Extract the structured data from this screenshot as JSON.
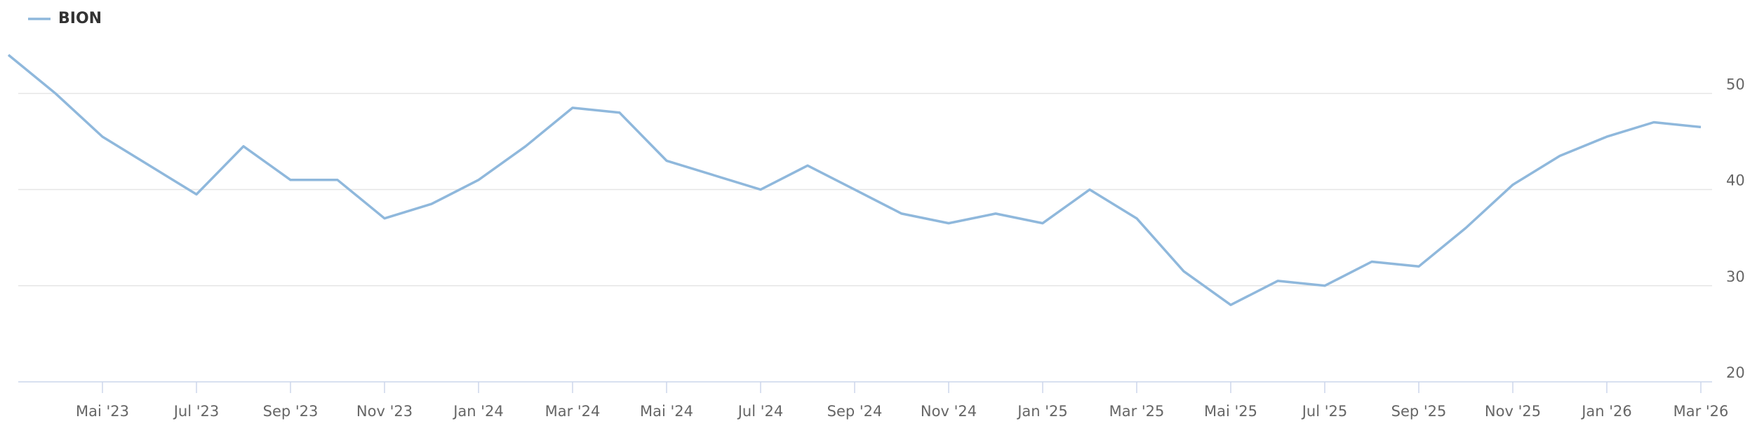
{
  "chart_data": {
    "type": "line",
    "x": [
      "2023-03",
      "2023-04",
      "2023-05",
      "2023-06",
      "2023-07",
      "2023-08",
      "2023-09",
      "2023-10",
      "2023-11",
      "2023-12",
      "2024-01",
      "2024-02",
      "2024-03",
      "2024-04",
      "2024-05",
      "2024-06",
      "2024-07",
      "2024-08",
      "2024-09",
      "2024-10",
      "2024-11",
      "2024-12",
      "2025-01",
      "2025-02",
      "2025-03",
      "2025-04",
      "2025-05",
      "2025-06",
      "2025-07",
      "2025-08",
      "2025-09",
      "2025-10",
      "2025-11",
      "2025-12",
      "2026-01",
      "2026-02",
      "2026-03"
    ],
    "series": [
      {
        "name": "BION",
        "color": "#8fb8dc",
        "values": [
          54,
          50,
          45.5,
          42.5,
          39.5,
          44.5,
          41,
          41,
          37,
          38.5,
          41,
          44.5,
          48.5,
          48,
          43,
          41.5,
          40,
          42.5,
          40,
          37.5,
          36.5,
          37.5,
          36.5,
          40,
          37,
          31.5,
          28,
          30.5,
          30,
          32.5,
          32,
          36,
          40.5,
          43.5,
          45.5,
          47,
          46.5
        ]
      }
    ],
    "xticks": [
      {
        "value": "2023-05",
        "label": "Mai '23"
      },
      {
        "value": "2023-07",
        "label": "Jul '23"
      },
      {
        "value": "2023-09",
        "label": "Sep '23"
      },
      {
        "value": "2023-11",
        "label": "Nov '23"
      },
      {
        "value": "2024-01",
        "label": "Jan '24"
      },
      {
        "value": "2024-03",
        "label": "Mar '24"
      },
      {
        "value": "2024-05",
        "label": "Mai '24"
      },
      {
        "value": "2024-07",
        "label": "Jul '24"
      },
      {
        "value": "2024-09",
        "label": "Sep '24"
      },
      {
        "value": "2024-11",
        "label": "Nov '24"
      },
      {
        "value": "2025-01",
        "label": "Jan '25"
      },
      {
        "value": "2025-03",
        "label": "Mar '25"
      },
      {
        "value": "2025-05",
        "label": "Mai '25"
      },
      {
        "value": "2025-07",
        "label": "Jul '25"
      },
      {
        "value": "2025-09",
        "label": "Sep '25"
      },
      {
        "value": "2025-11",
        "label": "Nov '25"
      },
      {
        "value": "2026-01",
        "label": "Jan '26"
      },
      {
        "value": "2026-03",
        "label": "Mar '26"
      }
    ],
    "ylim": [
      20,
      56
    ],
    "yticks": [
      20,
      30,
      40,
      50
    ],
    "grid": true,
    "legend": "top-left"
  }
}
